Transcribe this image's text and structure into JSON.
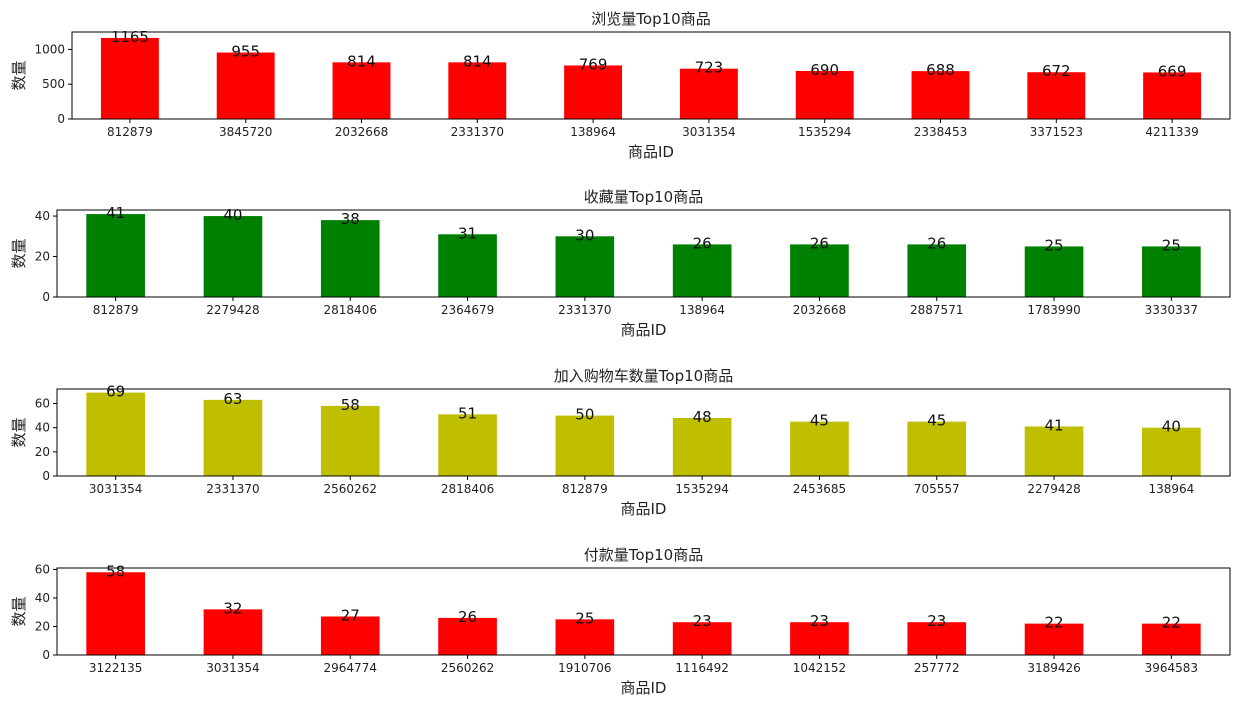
{
  "chart_data": [
    {
      "type": "bar",
      "title": "浏览量Top10商品",
      "xlabel": "商品ID",
      "ylabel": "数量",
      "color": "#ff0000",
      "ylim": [
        0,
        1250
      ],
      "yticks": [
        0,
        500,
        1000
      ],
      "grid": false,
      "categories": [
        "812879",
        "3845720",
        "2032668",
        "2331370",
        "138964",
        "3031354",
        "1535294",
        "2338453",
        "3371523",
        "4211339"
      ],
      "values": [
        1165,
        955,
        814,
        814,
        769,
        723,
        690,
        688,
        672,
        669
      ]
    },
    {
      "type": "bar",
      "title": "收藏量Top10商品",
      "xlabel": "商品ID",
      "ylabel": "数量",
      "color": "#008000",
      "ylim": [
        0,
        43
      ],
      "yticks": [
        0,
        20,
        40
      ],
      "grid": false,
      "categories": [
        "812879",
        "2279428",
        "2818406",
        "2364679",
        "2331370",
        "138964",
        "2032668",
        "2887571",
        "1783990",
        "3330337"
      ],
      "values": [
        41,
        40,
        38,
        31,
        30,
        26,
        26,
        26,
        25,
        25
      ]
    },
    {
      "type": "bar",
      "title": "加入购物车数量Top10商品",
      "xlabel": "商品ID",
      "ylabel": "数量",
      "color": "#bfbf00",
      "ylim": [
        0,
        72
      ],
      "yticks": [
        0,
        20,
        40,
        60
      ],
      "grid": false,
      "categories": [
        "3031354",
        "2331370",
        "2560262",
        "2818406",
        "812879",
        "1535294",
        "2453685",
        "705557",
        "2279428",
        "138964"
      ],
      "values": [
        69,
        63,
        58,
        51,
        50,
        48,
        45,
        45,
        41,
        40
      ]
    },
    {
      "type": "bar",
      "title": "付款量Top10商品",
      "xlabel": "商品ID",
      "ylabel": "数量",
      "color": "#ff0000",
      "ylim": [
        0,
        61
      ],
      "yticks": [
        0,
        20,
        40,
        60
      ],
      "grid": false,
      "categories": [
        "3122135",
        "3031354",
        "2964774",
        "2560262",
        "1910706",
        "1116492",
        "1042152",
        "257772",
        "3189426",
        "3964583"
      ],
      "values": [
        58,
        32,
        27,
        26,
        25,
        23,
        23,
        23,
        22,
        22
      ]
    }
  ]
}
